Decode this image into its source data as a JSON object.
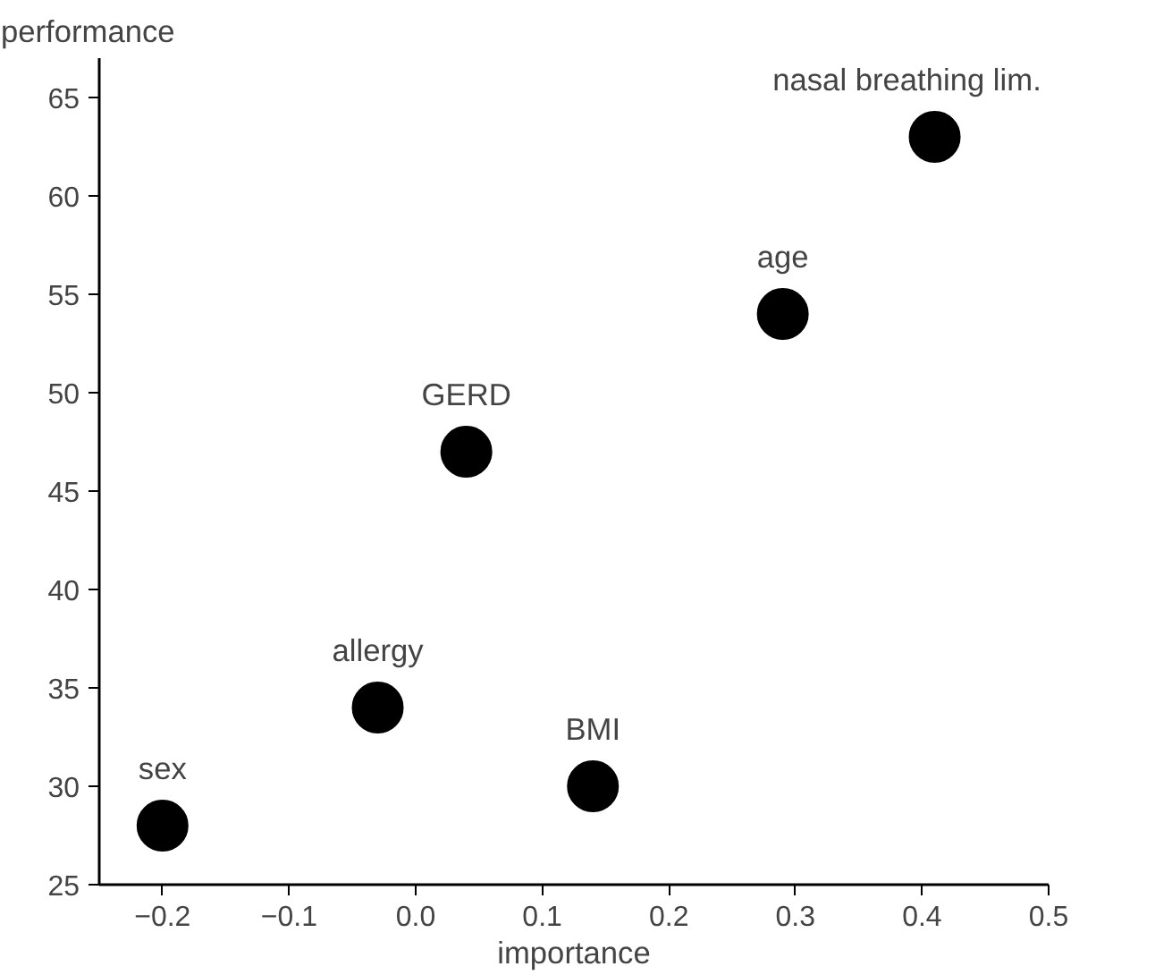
{
  "chart_data": {
    "type": "scatter",
    "xlabel": "importance",
    "ylabel": "performance",
    "x": [
      -0.2,
      -0.03,
      0.04,
      0.14,
      0.29,
      0.41
    ],
    "values": [
      28,
      34,
      47,
      30,
      54,
      63
    ],
    "color": "#000000",
    "marker": "circle",
    "grid": false,
    "xlim": [
      -0.25,
      0.5
    ],
    "xticks": [
      -0.2,
      -0.1,
      {
        "value": 0,
        "label": "0.0"
      },
      0.1,
      0.2,
      0.3,
      0.4,
      0.5
    ],
    "ylim": [
      25,
      67
    ],
    "yticks": [
      25,
      30,
      35,
      40,
      45,
      50,
      55,
      60,
      65
    ],
    "annotations": [
      {
        "text": "sex",
        "x": -0.2,
        "y": 28
      },
      {
        "text": "allergy",
        "x": -0.03,
        "y": 34
      },
      {
        "text": "GERD",
        "x": 0.04,
        "y": 47
      },
      {
        "text": "BMI",
        "x": 0.14,
        "y": 30
      },
      {
        "text": "age",
        "x": 0.29,
        "y": 54
      },
      {
        "text": "nasal breathing lim.",
        "x": 0.41,
        "y": 63
      }
    ]
  }
}
